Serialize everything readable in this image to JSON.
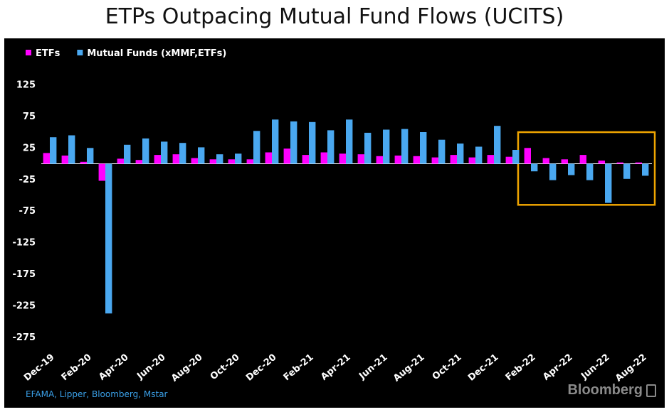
{
  "chart_data": {
    "type": "bar",
    "title": "ETPs Outpacing Mutual Fund Flows (UCITS)",
    "categories": [
      "Dec-19",
      "Jan-20",
      "Feb-20",
      "Mar-20",
      "Apr-20",
      "May-20",
      "Jun-20",
      "Jul-20",
      "Aug-20",
      "Sep-20",
      "Oct-20",
      "Nov-20",
      "Dec-20",
      "Jan-21",
      "Feb-21",
      "Mar-21",
      "Apr-21",
      "May-21",
      "Jun-21",
      "Jul-21",
      "Aug-21",
      "Sep-21",
      "Oct-21",
      "Nov-21",
      "Dec-21",
      "Jan-22",
      "Feb-22",
      "Mar-22",
      "Apr-22",
      "May-22",
      "Jun-22",
      "Jul-22",
      "Aug-22"
    ],
    "x_tick_labels": [
      "Dec-19",
      "Feb-20",
      "Apr-20",
      "Jun-20",
      "Aug-20",
      "Oct-20",
      "Dec-20",
      "Feb-21",
      "Apr-21",
      "Jun-21",
      "Aug-21",
      "Oct-21",
      "Dec-21",
      "Feb-22",
      "Apr-22",
      "Jun-22",
      "Aug-22"
    ],
    "series": [
      {
        "name": "ETFs",
        "color": "#ff00ff",
        "values": [
          17,
          13,
          3,
          -27,
          8,
          6,
          14,
          15,
          9,
          7,
          7,
          7,
          18,
          24,
          14,
          18,
          16,
          15,
          12,
          13,
          12,
          10,
          14,
          10,
          14,
          11,
          25,
          9,
          7,
          14,
          5,
          2,
          2
        ]
      },
      {
        "name": "Mutual Funds (xMMF,ETFs)",
        "color": "#4aa8f0",
        "values": [
          42,
          45,
          25,
          -237,
          30,
          40,
          35,
          33,
          26,
          15,
          16,
          52,
          70,
          67,
          66,
          53,
          70,
          49,
          54,
          55,
          50,
          38,
          32,
          27,
          60,
          22,
          -12,
          -26,
          -18,
          -26,
          -62,
          -24,
          -19
        ]
      }
    ],
    "yticks": [
      125,
      75,
      25,
      -25,
      -75,
      -125,
      -175,
      -225,
      -275
    ],
    "ylim": [
      -285,
      140
    ],
    "legend_position": "top-left",
    "highlight": {
      "from": "Feb-22",
      "to": "Aug-22",
      "color": "#f0a500"
    }
  },
  "source": "EFAMA, Lipper, Bloomberg, Mstar",
  "logo": "Bloomberg"
}
